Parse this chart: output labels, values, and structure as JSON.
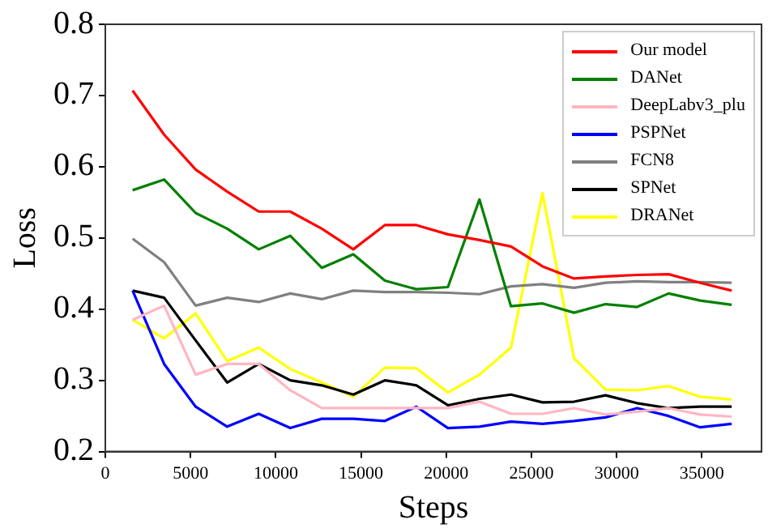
{
  "chart_data": {
    "type": "line",
    "xlabel": "Steps",
    "ylabel": "Loss",
    "x": [
      1600,
      3450,
      5300,
      7150,
      9000,
      10850,
      12700,
      14550,
      16400,
      18250,
      20100,
      21950,
      23800,
      25650,
      27500,
      29350,
      31200,
      33050,
      34900,
      36750
    ],
    "series": [
      {
        "name": "Our model",
        "color": "#ff0000",
        "values": [
          0.707,
          0.645,
          0.596,
          0.565,
          0.537,
          0.537,
          0.513,
          0.484,
          0.518,
          0.518,
          0.505,
          0.497,
          0.488,
          0.46,
          0.443,
          0.446,
          0.448,
          0.449,
          0.437,
          0.426
        ]
      },
      {
        "name": "DANet",
        "color": "#008000",
        "values": [
          0.567,
          0.582,
          0.535,
          0.513,
          0.484,
          0.503,
          0.458,
          0.477,
          0.44,
          0.428,
          0.431,
          0.554,
          0.404,
          0.408,
          0.395,
          0.407,
          0.403,
          0.422,
          0.412,
          0.406
        ]
      },
      {
        "name": "DeepLabv3_plu",
        "color": "#ffb6c1",
        "values": [
          0.385,
          0.405,
          0.308,
          0.323,
          0.323,
          0.286,
          0.261,
          0.261,
          0.261,
          0.261,
          0.261,
          0.27,
          0.253,
          0.253,
          0.261,
          0.252,
          0.256,
          0.261,
          0.252,
          0.249
        ]
      },
      {
        "name": "PSPNet",
        "color": "#0000ff",
        "values": [
          0.426,
          0.323,
          0.263,
          0.235,
          0.253,
          0.233,
          0.246,
          0.246,
          0.243,
          0.263,
          0.233,
          0.235,
          0.242,
          0.239,
          0.243,
          0.248,
          0.261,
          0.25,
          0.234,
          0.239
        ]
      },
      {
        "name": "FCN8",
        "color": "#808080",
        "values": [
          0.499,
          0.466,
          0.405,
          0.416,
          0.41,
          0.422,
          0.414,
          0.426,
          0.424,
          0.424,
          0.423,
          0.421,
          0.432,
          0.435,
          0.43,
          0.437,
          0.439,
          0.438,
          0.438,
          0.437
        ]
      },
      {
        "name": "SPNet",
        "color": "#000000",
        "values": [
          0.426,
          0.416,
          0.356,
          0.297,
          0.323,
          0.3,
          0.293,
          0.28,
          0.3,
          0.293,
          0.265,
          0.274,
          0.28,
          0.269,
          0.27,
          0.279,
          0.268,
          0.261,
          0.263,
          0.263
        ]
      },
      {
        "name": "DRANet",
        "color": "#ffff00",
        "values": [
          0.385,
          0.359,
          0.394,
          0.327,
          0.346,
          0.316,
          0.297,
          0.277,
          0.318,
          0.317,
          0.283,
          0.308,
          0.346,
          0.563,
          0.331,
          0.287,
          0.286,
          0.292,
          0.277,
          0.273
        ]
      }
    ],
    "xlim": [
      0,
      38500
    ],
    "xticks": [
      0,
      5000,
      10000,
      15000,
      20000,
      25000,
      30000,
      35000
    ],
    "ylim": [
      0.2,
      0.8
    ],
    "yticks": [
      0.2,
      0.3,
      0.4,
      0.5,
      0.6,
      0.7,
      0.8
    ],
    "grid": false,
    "legend": "top right",
    "marker": "none",
    "line_style": "solid"
  }
}
